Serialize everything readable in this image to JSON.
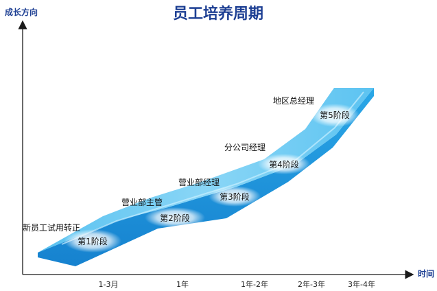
{
  "title": "员工培养周期",
  "axes": {
    "y_label": "成长方向",
    "x_label": "时间"
  },
  "time_ticks": [
    "1-3月",
    "1年",
    "1年-2年",
    "2年-3年",
    "3年-4年"
  ],
  "stages": [
    {
      "label": "第1阶段",
      "role": "新员工试用转正"
    },
    {
      "label": "第2阶段",
      "role": "营业部主管"
    },
    {
      "label": "第3阶段",
      "role": "营业部经理"
    },
    {
      "label": "第4阶段",
      "role": "分公司经理"
    },
    {
      "label": "第5阶段",
      "role": "地区总经理"
    }
  ],
  "colors": {
    "title": "#1d3f93",
    "axis": "#1a1a1a",
    "ribbon_top": "#7fd0f3",
    "ribbon_mid": "#3fb2ea",
    "ribbon_side": "#1c83cf"
  }
}
